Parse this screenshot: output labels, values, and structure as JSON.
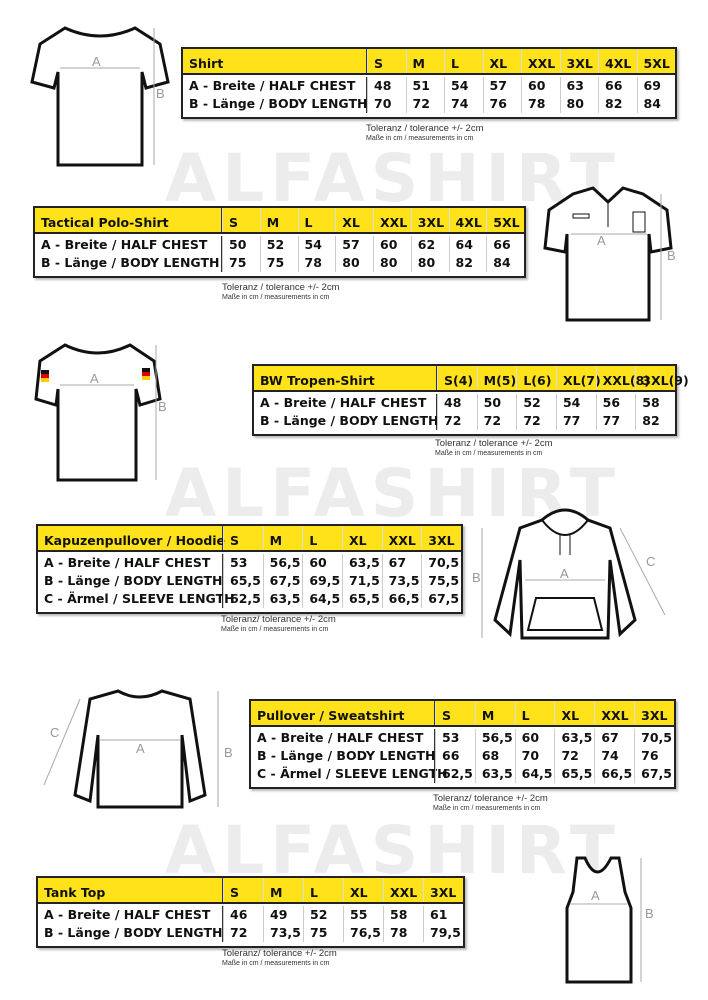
{
  "watermark": "ALFASHIRT",
  "tables": [
    {
      "title": "Shirt",
      "sizes": [
        "S",
        "M",
        "L",
        "XL",
        "XXL",
        "3XL",
        "4XL",
        "5XL"
      ],
      "rows": [
        {
          "label": "A -  Breite / HALF CHEST",
          "values": [
            "48",
            "51",
            "54",
            "57",
            "60",
            "63",
            "66",
            "69"
          ]
        },
        {
          "label": "B -  Länge / BODY LENGTH",
          "values": [
            "70",
            "72",
            "74",
            "76",
            "78",
            "80",
            "82",
            "84"
          ]
        }
      ],
      "tolerance": "Toleranz / tolerance +/- 2cm",
      "measure_note": "Maße in cm / measurements in cm"
    },
    {
      "title": "Tactical Polo-Shirt",
      "sizes": [
        "S",
        "M",
        "L",
        "XL",
        "XXL",
        "3XL",
        "4XL",
        "5XL"
      ],
      "rows": [
        {
          "label": "A -  Breite / HALF CHEST",
          "values": [
            "50",
            "52",
            "54",
            "57",
            "60",
            "62",
            "64",
            "66"
          ]
        },
        {
          "label": "B -  Länge / BODY LENGTH",
          "values": [
            "75",
            "75",
            "78",
            "80",
            "80",
            "80",
            "82",
            "84"
          ]
        }
      ],
      "tolerance": "Toleranz / tolerance +/- 2cm",
      "measure_note": "Maße in cm / measurements in cm"
    },
    {
      "title": "BW Tropen-Shirt",
      "sizes": [
        "S(4)",
        "M(5)",
        "L(6)",
        "XL(7)",
        "XXL(8)",
        "3XL(9)"
      ],
      "rows": [
        {
          "label": "A -  Breite / HALF CHEST",
          "values": [
            "48",
            "50",
            "52",
            "54",
            "56",
            "58"
          ]
        },
        {
          "label": "B -  Länge / BODY LENGTH",
          "values": [
            "72",
            "72",
            "72",
            "77",
            "77",
            "82"
          ]
        }
      ],
      "tolerance": "Toleranz / tolerance +/- 2cm",
      "measure_note": "Maße in cm / measurements in cm"
    },
    {
      "title": "Kapuzenpullover / Hoodie",
      "sizes": [
        "S",
        "M",
        "L",
        "XL",
        "XXL",
        "3XL"
      ],
      "rows": [
        {
          "label": "A -  Breite / HALF CHEST",
          "values": [
            "53",
            "56,5",
            "60",
            "63,5",
            "67",
            "70,5"
          ]
        },
        {
          "label": "B -  Länge / BODY LENGTH",
          "values": [
            "65,5",
            "67,5",
            "69,5",
            "71,5",
            "73,5",
            "75,5"
          ]
        },
        {
          "label": "C -  Ärmel / SLEEVE LENGTH",
          "values": [
            "62,5",
            "63,5",
            "64,5",
            "65,5",
            "66,5",
            "67,5"
          ]
        }
      ],
      "tolerance": "Toleranz/ tolerance +/- 2cm",
      "measure_note": "Maße in cm / measurements in cm"
    },
    {
      "title": "Pullover / Sweatshirt",
      "sizes": [
        "S",
        "M",
        "L",
        "XL",
        "XXL",
        "3XL"
      ],
      "rows": [
        {
          "label": "A -  Breite / HALF CHEST",
          "values": [
            "53",
            "56,5",
            "60",
            "63,5",
            "67",
            "70,5"
          ]
        },
        {
          "label": "B -  Länge / BODY LENGTH",
          "values": [
            "66",
            "68",
            "70",
            "72",
            "74",
            "76"
          ]
        },
        {
          "label": "C -  Ärmel / SLEEVE LENGTH",
          "values": [
            "62,5",
            "63,5",
            "64,5",
            "65,5",
            "66,5",
            "67,5"
          ]
        }
      ],
      "tolerance": "Toleranz/ tolerance +/- 2cm",
      "measure_note": "Maße in cm / measurements in cm"
    },
    {
      "title": "Tank Top",
      "sizes": [
        "S",
        "M",
        "L",
        "XL",
        "XXL",
        "3XL"
      ],
      "rows": [
        {
          "label": "A -  Breite / HALF CHEST",
          "values": [
            "46",
            "49",
            "52",
            "55",
            "58",
            "61"
          ]
        },
        {
          "label": "B -  Länge / BODY LENGTH",
          "values": [
            "72",
            "73,5",
            "75",
            "76,5",
            "78",
            "79,5"
          ]
        }
      ],
      "tolerance": "Toleranz/ tolerance +/- 2cm",
      "measure_note": "Maße in cm / measurements in cm"
    }
  ],
  "dimension_letters": {
    "a": "A",
    "b": "B",
    "c": "C"
  },
  "colors": {
    "header_yellow": "#ffe21a",
    "border": "#222222",
    "watermark": "#ececec"
  }
}
